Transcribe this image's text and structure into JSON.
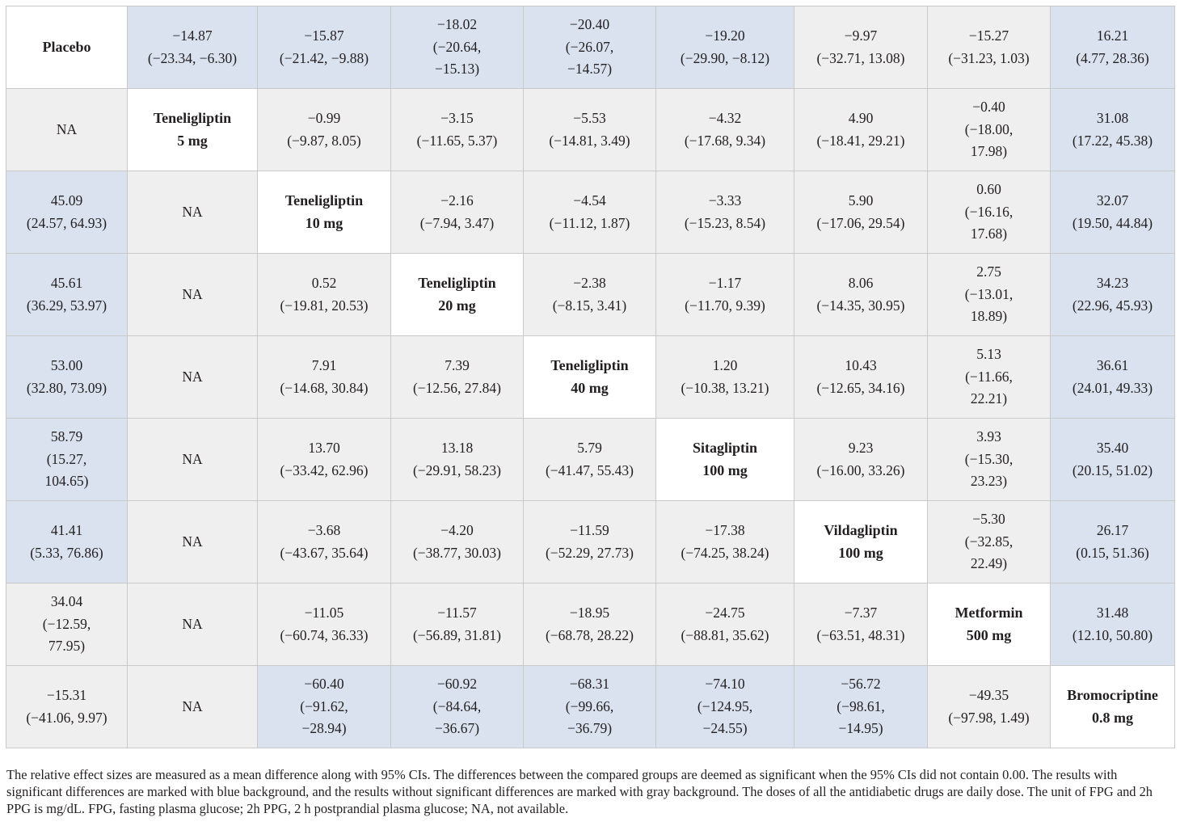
{
  "table": {
    "rows": [
      [
        {
          "lines": [
            "Placebo"
          ],
          "kind": "diag"
        },
        {
          "lines": [
            "−14.87",
            "(−23.34, −6.30)"
          ],
          "kind": "sig"
        },
        {
          "lines": [
            "−15.87",
            "(−21.42, −9.88)"
          ],
          "kind": "sig"
        },
        {
          "lines": [
            "−18.02",
            "(−20.64,",
            "−15.13)"
          ],
          "kind": "sig"
        },
        {
          "lines": [
            "−20.40",
            "(−26.07,",
            "−14.57)"
          ],
          "kind": "sig"
        },
        {
          "lines": [
            "−19.20",
            "(−29.90, −8.12)"
          ],
          "kind": "sig"
        },
        {
          "lines": [
            "−9.97",
            "(−32.71, 13.08)"
          ],
          "kind": "nsig"
        },
        {
          "lines": [
            "−15.27",
            "(−31.23, 1.03)"
          ],
          "kind": "nsig"
        },
        {
          "lines": [
            "16.21",
            "(4.77, 28.36)"
          ],
          "kind": "sig"
        }
      ],
      [
        {
          "lines": [
            "NA"
          ],
          "kind": "nsig"
        },
        {
          "lines": [
            "Teneligliptin",
            "5 mg"
          ],
          "kind": "diag"
        },
        {
          "lines": [
            "−0.99",
            "(−9.87, 8.05)"
          ],
          "kind": "nsig"
        },
        {
          "lines": [
            "−3.15",
            "(−11.65, 5.37)"
          ],
          "kind": "nsig"
        },
        {
          "lines": [
            "−5.53",
            "(−14.81, 3.49)"
          ],
          "kind": "nsig"
        },
        {
          "lines": [
            "−4.32",
            "(−17.68, 9.34)"
          ],
          "kind": "nsig"
        },
        {
          "lines": [
            "4.90",
            "(−18.41, 29.21)"
          ],
          "kind": "nsig"
        },
        {
          "lines": [
            "−0.40",
            "(−18.00,",
            "17.98)"
          ],
          "kind": "nsig"
        },
        {
          "lines": [
            "31.08",
            "(17.22, 45.38)"
          ],
          "kind": "sig"
        }
      ],
      [
        {
          "lines": [
            "45.09",
            "(24.57, 64.93)"
          ],
          "kind": "sig"
        },
        {
          "lines": [
            "NA"
          ],
          "kind": "nsig"
        },
        {
          "lines": [
            "Teneligliptin",
            "10 mg"
          ],
          "kind": "diag"
        },
        {
          "lines": [
            "−2.16",
            "(−7.94, 3.47)"
          ],
          "kind": "nsig"
        },
        {
          "lines": [
            "−4.54",
            "(−11.12, 1.87)"
          ],
          "kind": "nsig"
        },
        {
          "lines": [
            "−3.33",
            "(−15.23, 8.54)"
          ],
          "kind": "nsig"
        },
        {
          "lines": [
            "5.90",
            "(−17.06, 29.54)"
          ],
          "kind": "nsig"
        },
        {
          "lines": [
            "0.60",
            "(−16.16,",
            "17.68)"
          ],
          "kind": "nsig"
        },
        {
          "lines": [
            "32.07",
            "(19.50, 44.84)"
          ],
          "kind": "sig"
        }
      ],
      [
        {
          "lines": [
            "45.61",
            "(36.29, 53.97)"
          ],
          "kind": "sig"
        },
        {
          "lines": [
            "NA"
          ],
          "kind": "nsig"
        },
        {
          "lines": [
            "0.52",
            "(−19.81, 20.53)"
          ],
          "kind": "nsig"
        },
        {
          "lines": [
            "Teneligliptin",
            "20 mg"
          ],
          "kind": "diag"
        },
        {
          "lines": [
            "−2.38",
            "(−8.15, 3.41)"
          ],
          "kind": "nsig"
        },
        {
          "lines": [
            "−1.17",
            "(−11.70, 9.39)"
          ],
          "kind": "nsig"
        },
        {
          "lines": [
            "8.06",
            "(−14.35, 30.95)"
          ],
          "kind": "nsig"
        },
        {
          "lines": [
            "2.75",
            "(−13.01,",
            "18.89)"
          ],
          "kind": "nsig"
        },
        {
          "lines": [
            "34.23",
            "(22.96, 45.93)"
          ],
          "kind": "sig"
        }
      ],
      [
        {
          "lines": [
            "53.00",
            "(32.80, 73.09)"
          ],
          "kind": "sig"
        },
        {
          "lines": [
            "NA"
          ],
          "kind": "nsig"
        },
        {
          "lines": [
            "7.91",
            "(−14.68, 30.84)"
          ],
          "kind": "nsig"
        },
        {
          "lines": [
            "7.39",
            "(−12.56, 27.84)"
          ],
          "kind": "nsig"
        },
        {
          "lines": [
            "Teneligliptin",
            "40 mg"
          ],
          "kind": "diag"
        },
        {
          "lines": [
            "1.20",
            "(−10.38, 13.21)"
          ],
          "kind": "nsig"
        },
        {
          "lines": [
            "10.43",
            "(−12.65, 34.16)"
          ],
          "kind": "nsig"
        },
        {
          "lines": [
            "5.13",
            "(−11.66,",
            "22.21)"
          ],
          "kind": "nsig"
        },
        {
          "lines": [
            "36.61",
            "(24.01, 49.33)"
          ],
          "kind": "sig"
        }
      ],
      [
        {
          "lines": [
            "58.79",
            "(15.27,",
            "104.65)"
          ],
          "kind": "sig"
        },
        {
          "lines": [
            "NA"
          ],
          "kind": "nsig"
        },
        {
          "lines": [
            "13.70",
            "(−33.42, 62.96)"
          ],
          "kind": "nsig"
        },
        {
          "lines": [
            "13.18",
            "(−29.91, 58.23)"
          ],
          "kind": "nsig"
        },
        {
          "lines": [
            "5.79",
            "(−41.47, 55.43)"
          ],
          "kind": "nsig"
        },
        {
          "lines": [
            "Sitagliptin",
            "100 mg"
          ],
          "kind": "diag"
        },
        {
          "lines": [
            "9.23",
            "(−16.00, 33.26)"
          ],
          "kind": "nsig"
        },
        {
          "lines": [
            "3.93",
            "(−15.30,",
            "23.23)"
          ],
          "kind": "nsig"
        },
        {
          "lines": [
            "35.40",
            "(20.15, 51.02)"
          ],
          "kind": "sig"
        }
      ],
      [
        {
          "lines": [
            "41.41",
            "(5.33, 76.86)"
          ],
          "kind": "sig"
        },
        {
          "lines": [
            "NA"
          ],
          "kind": "nsig"
        },
        {
          "lines": [
            "−3.68",
            "(−43.67, 35.64)"
          ],
          "kind": "nsig"
        },
        {
          "lines": [
            "−4.20",
            "(−38.77, 30.03)"
          ],
          "kind": "nsig"
        },
        {
          "lines": [
            "−11.59",
            "(−52.29, 27.73)"
          ],
          "kind": "nsig"
        },
        {
          "lines": [
            "−17.38",
            "(−74.25, 38.24)"
          ],
          "kind": "nsig"
        },
        {
          "lines": [
            "Vildagliptin",
            "100 mg"
          ],
          "kind": "diag"
        },
        {
          "lines": [
            "−5.30",
            "(−32.85,",
            "22.49)"
          ],
          "kind": "nsig"
        },
        {
          "lines": [
            "26.17",
            "(0.15, 51.36)"
          ],
          "kind": "sig"
        }
      ],
      [
        {
          "lines": [
            "34.04",
            "(−12.59,",
            "77.95)"
          ],
          "kind": "nsig"
        },
        {
          "lines": [
            "NA"
          ],
          "kind": "nsig"
        },
        {
          "lines": [
            "−11.05",
            "(−60.74, 36.33)"
          ],
          "kind": "nsig"
        },
        {
          "lines": [
            "−11.57",
            "(−56.89, 31.81)"
          ],
          "kind": "nsig"
        },
        {
          "lines": [
            "−18.95",
            "(−68.78, 28.22)"
          ],
          "kind": "nsig"
        },
        {
          "lines": [
            "−24.75",
            "(−88.81, 35.62)"
          ],
          "kind": "nsig"
        },
        {
          "lines": [
            "−7.37",
            "(−63.51, 48.31)"
          ],
          "kind": "nsig"
        },
        {
          "lines": [
            "Metformin",
            "500 mg"
          ],
          "kind": "diag"
        },
        {
          "lines": [
            "31.48",
            "(12.10, 50.80)"
          ],
          "kind": "sig"
        }
      ],
      [
        {
          "lines": [
            "−15.31",
            "(−41.06, 9.97)"
          ],
          "kind": "nsig"
        },
        {
          "lines": [
            "NA"
          ],
          "kind": "nsig"
        },
        {
          "lines": [
            "−60.40",
            "(−91.62,",
            "−28.94)"
          ],
          "kind": "sig"
        },
        {
          "lines": [
            "−60.92",
            "(−84.64,",
            "−36.67)"
          ],
          "kind": "sig"
        },
        {
          "lines": [
            "−68.31",
            "(−99.66,",
            "−36.79)"
          ],
          "kind": "sig"
        },
        {
          "lines": [
            "−74.10",
            "(−124.95,",
            "−24.55)"
          ],
          "kind": "sig"
        },
        {
          "lines": [
            "−56.72",
            "(−98.61,",
            "−14.95)"
          ],
          "kind": "sig"
        },
        {
          "lines": [
            "−49.35",
            "(−97.98, 1.49)"
          ],
          "kind": "nsig"
        },
        {
          "lines": [
            "Bromocriptine",
            "0.8 mg"
          ],
          "kind": "diag"
        }
      ]
    ]
  },
  "footnote": "The relative effect sizes are measured as a mean difference along with 95% CIs. The differences between the compared groups are deemed as significant when the 95% CIs did not contain 0.00. The results with significant differences are marked with blue background, and the results without significant differences are marked with gray background. The doses of all the antidiabetic drugs are daily dose. The unit of FPG and 2h PPG is mg/dL. FPG, fasting plasma glucose; 2h PPG, 2 h postprandial plasma glucose; NA, not available."
}
